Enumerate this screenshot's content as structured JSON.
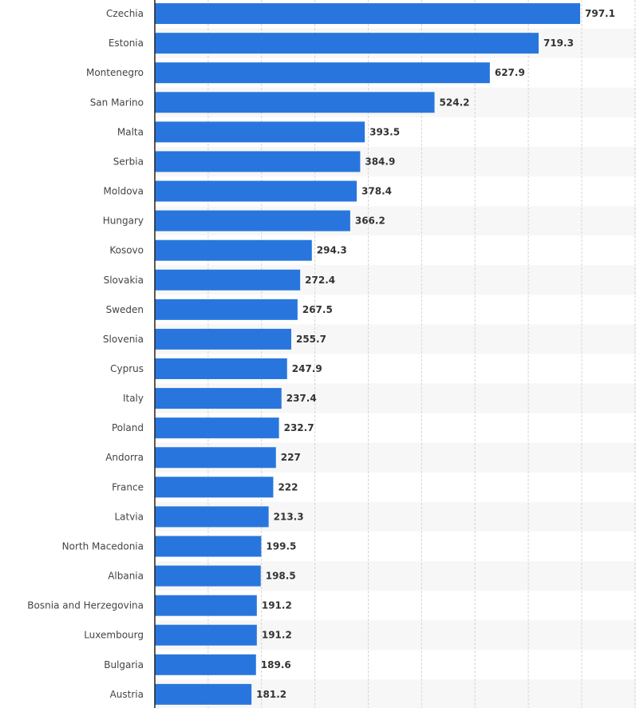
{
  "chart_data": {
    "type": "bar",
    "orientation": "horizontal",
    "categories": [
      "Czechia",
      "Estonia",
      "Montenegro",
      "San Marino",
      "Malta",
      "Serbia",
      "Moldova",
      "Hungary",
      "Kosovo",
      "Slovakia",
      "Sweden",
      "Slovenia",
      "Cyprus",
      "Italy",
      "Poland",
      "Andorra",
      "France",
      "Latvia",
      "North Macedonia",
      "Albania",
      "Bosnia and Herzegovina",
      "Luxembourg",
      "Bulgaria",
      "Austria"
    ],
    "values": [
      797.1,
      719.3,
      627.9,
      524.2,
      393.5,
      384.9,
      378.4,
      366.2,
      294.3,
      272.4,
      267.5,
      255.7,
      247.9,
      237.4,
      232.7,
      227,
      222,
      213.3,
      199.5,
      198.5,
      191.2,
      191.2,
      189.6,
      181.2
    ],
    "value_labels": [
      "797.1",
      "719.3",
      "627.9",
      "524.2",
      "393.5",
      "384.9",
      "378.4",
      "366.2",
      "294.3",
      "272.4",
      "267.5",
      "255.7",
      "247.9",
      "237.4",
      "232.7",
      "227",
      "222",
      "213.3",
      "199.5",
      "198.5",
      "191.2",
      "191.2",
      "189.6",
      "181.2"
    ],
    "xlim": [
      0,
      900
    ],
    "grid": true,
    "legend": "none",
    "colors": {
      "bar": "#2876dd",
      "band_alt": "#f7f7f7",
      "grid": "#d4d4d4",
      "axis": "#222222"
    }
  }
}
